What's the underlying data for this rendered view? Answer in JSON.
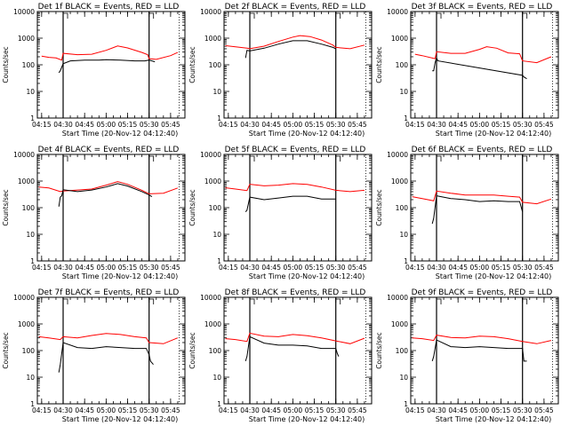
{
  "chart_data": {
    "type": "line",
    "ylabel": "Counts/sec",
    "xlabel": "Start Time (20-Nov-12 04:12:40)",
    "y_scale": "log",
    "ylim": [
      1,
      10000
    ],
    "y_ticks": [
      1,
      10,
      100,
      1000,
      10000
    ],
    "y_tick_labels": [
      "1",
      "10",
      "100",
      "1000",
      "10000"
    ],
    "xlim": [
      "04:12:40",
      "05:55:00"
    ],
    "x_tick_labels": [
      "04:15",
      "04:30",
      "04:45",
      "05:00",
      "05:15",
      "05:30",
      "05:45"
    ],
    "x_tick_minutes": [
      255,
      270,
      285,
      300,
      315,
      330,
      345
    ],
    "vertical_markers": [
      {
        "time": "04:30",
        "style": "solid"
      },
      {
        "time": "05:30",
        "style": "solid"
      },
      {
        "time": "05:51",
        "style": "dotted"
      }
    ],
    "colors": {
      "events": "#000000",
      "lld": "#ff0000"
    },
    "grid": false,
    "legend": "in title",
    "panels": [
      {
        "title": "Det 1f BLACK = Events, RED = LLD",
        "series": [
          {
            "color": "#000000",
            "x": [
              "04:27",
              "04:28",
              "04:30",
              "04:35",
              "04:45",
              "04:55",
              "05:00",
              "05:10",
              "05:20",
              "05:27",
              "05:30",
              "05:32",
              "05:34"
            ],
            "values": [
              50,
              60,
              110,
              140,
              150,
              150,
              155,
              150,
              140,
              140,
              150,
              140,
              130
            ]
          },
          {
            "color": "#ff0000",
            "x": [
              "04:15",
              "04:20",
              "04:25",
              "04:29",
              "04:30",
              "04:40",
              "04:50",
              "05:00",
              "05:08",
              "05:15",
              "05:25",
              "05:29",
              "05:30",
              "05:35",
              "05:45",
              "05:50"
            ],
            "values": [
              210,
              190,
              180,
              150,
              270,
              240,
              250,
              350,
              510,
              430,
              290,
              240,
              170,
              160,
              220,
              290
            ]
          }
        ]
      },
      {
        "title": "Det 2f BLACK = Events, RED = LLD",
        "series": [
          {
            "color": "#000000",
            "x": [
              "04:27",
              "04:28",
              "04:30",
              "04:40",
              "04:50",
              "05:00",
              "05:05",
              "05:10",
              "05:20",
              "05:28",
              "05:30"
            ],
            "values": [
              180,
              350,
              330,
              420,
              600,
              800,
              800,
              800,
              600,
              450,
              400
            ]
          },
          {
            "color": "#ff0000",
            "x": [
              "04:13",
              "04:20",
              "04:28",
              "04:30",
              "04:40",
              "04:50",
              "05:00",
              "05:05",
              "05:12",
              "05:20",
              "05:28",
              "05:30",
              "05:40",
              "05:50"
            ],
            "values": [
              520,
              470,
              420,
              400,
              500,
              750,
              1100,
              1250,
              1150,
              850,
              550,
              450,
              400,
              550
            ]
          }
        ]
      },
      {
        "title": "Det 3f BLACK = Events, RED = LLD",
        "series": [
          {
            "color": "#000000",
            "x": [
              "04:27",
              "04:28",
              "04:29",
              "04:30",
              "04:31",
              "05:30",
              "05:31",
              "05:33"
            ],
            "values": [
              60,
              60,
              120,
              180,
              140,
              40,
              35,
              30
            ]
          },
          {
            "color": "#ff0000",
            "x": [
              "04:15",
              "04:20",
              "04:29",
              "04:30",
              "04:40",
              "04:50",
              "05:00",
              "05:05",
              "05:12",
              "05:20",
              "05:28",
              "05:30",
              "05:40",
              "05:50"
            ],
            "values": [
              250,
              220,
              170,
              310,
              270,
              270,
              380,
              480,
              420,
              280,
              260,
              140,
              120,
              200
            ]
          }
        ]
      },
      {
        "title": "Det 4f BLACK = Events, RED = LLD",
        "series": [
          {
            "color": "#000000",
            "x": [
              "04:27",
              "04:28",
              "04:29",
              "04:30",
              "04:40",
              "04:50",
              "05:00",
              "05:08",
              "05:15",
              "05:25",
              "05:30",
              "05:32"
            ],
            "values": [
              110,
              250,
              280,
              470,
              400,
              460,
              600,
              800,
              650,
              400,
              300,
              260
            ]
          },
          {
            "color": "#ff0000",
            "x": [
              "04:13",
              "04:20",
              "04:28",
              "04:30",
              "04:40",
              "04:50",
              "05:00",
              "05:08",
              "05:15",
              "05:25",
              "05:30",
              "05:40",
              "05:50"
            ],
            "values": [
              600,
              550,
              400,
              420,
              460,
              500,
              700,
              950,
              750,
              450,
              330,
              350,
              550
            ]
          }
        ]
      },
      {
        "title": "Det 5f BLACK = Events, RED = LLD",
        "series": [
          {
            "color": "#000000",
            "x": [
              "04:27",
              "04:28",
              "04:30",
              "04:40",
              "04:50",
              "05:00",
              "05:10",
              "05:20",
              "05:30"
            ],
            "values": [
              70,
              80,
              250,
              200,
              230,
              270,
              270,
              210,
              210
            ]
          },
          {
            "color": "#ff0000",
            "x": [
              "04:13",
              "04:20",
              "04:28",
              "04:30",
              "04:40",
              "04:50",
              "05:00",
              "05:10",
              "05:20",
              "05:30",
              "05:40",
              "05:50"
            ],
            "values": [
              560,
              500,
              440,
              760,
              660,
              700,
              800,
              750,
              600,
              450,
              400,
              450
            ]
          }
        ]
      },
      {
        "title": "Det 6f BLACK = Events, RED = LLD",
        "series": [
          {
            "color": "#000000",
            "x": [
              "04:27",
              "04:28",
              "04:30",
              "04:40",
              "04:50",
              "05:00",
              "05:10",
              "05:20",
              "05:28",
              "05:30"
            ],
            "values": [
              25,
              40,
              280,
              220,
              200,
              170,
              180,
              170,
              170,
              70
            ]
          },
          {
            "color": "#ff0000",
            "x": [
              "04:13",
              "04:20",
              "04:28",
              "04:30",
              "04:40",
              "04:50",
              "05:00",
              "05:10",
              "05:20",
              "05:28",
              "05:30",
              "05:40",
              "05:50"
            ],
            "values": [
              260,
              220,
              180,
              420,
              350,
              300,
              300,
              300,
              270,
              250,
              160,
              140,
              210
            ]
          }
        ]
      },
      {
        "title": "Det 7f BLACK = Events, RED = LLD",
        "series": [
          {
            "color": "#000000",
            "x": [
              "04:27",
              "04:28",
              "04:30",
              "04:40",
              "04:50",
              "05:00",
              "05:10",
              "05:20",
              "05:28",
              "05:30",
              "05:31",
              "05:33"
            ],
            "values": [
              15,
              30,
              200,
              130,
              120,
              140,
              130,
              120,
              120,
              70,
              40,
              30
            ]
          },
          {
            "color": "#ff0000",
            "x": [
              "04:13",
              "04:20",
              "04:28",
              "04:30",
              "04:40",
              "04:50",
              "05:00",
              "05:10",
              "05:20",
              "05:28",
              "05:30",
              "05:40",
              "05:50"
            ],
            "values": [
              330,
              300,
              260,
              330,
              300,
              370,
              440,
              400,
              330,
              300,
              200,
              180,
              300
            ]
          }
        ]
      },
      {
        "title": "Det 8f BLACK = Events, RED = LLD",
        "series": [
          {
            "color": "#000000",
            "x": [
              "04:27",
              "04:28",
              "04:30",
              "04:40",
              "04:50",
              "05:00",
              "05:10",
              "05:20",
              "05:30",
              "05:31",
              "05:32"
            ],
            "values": [
              40,
              60,
              330,
              190,
              160,
              160,
              150,
              120,
              120,
              80,
              60
            ]
          },
          {
            "color": "#ff0000",
            "x": [
              "04:13",
              "04:20",
              "04:28",
              "04:30",
              "04:40",
              "04:50",
              "05:00",
              "05:10",
              "05:20",
              "05:30",
              "05:40",
              "05:50"
            ],
            "values": [
              280,
              260,
              220,
              450,
              350,
              330,
              400,
              360,
              300,
              230,
              180,
              290
            ]
          }
        ]
      },
      {
        "title": "Det 9f BLACK = Events, RED = LLD",
        "series": [
          {
            "color": "#000000",
            "x": [
              "04:27",
              "04:28",
              "04:30",
              "04:40",
              "04:50",
              "05:00",
              "05:10",
              "05:20",
              "05:30",
              "05:31",
              "05:33"
            ],
            "values": [
              40,
              60,
              250,
              140,
              130,
              140,
              130,
              120,
              120,
              40,
              40
            ]
          },
          {
            "color": "#ff0000",
            "x": [
              "04:13",
              "04:20",
              "04:28",
              "04:30",
              "04:40",
              "04:50",
              "05:00",
              "05:10",
              "05:20",
              "05:30",
              "05:40",
              "05:50"
            ],
            "values": [
              300,
              280,
              240,
              380,
              310,
              300,
              350,
              330,
              280,
              220,
              180,
              240
            ]
          }
        ]
      }
    ]
  }
}
